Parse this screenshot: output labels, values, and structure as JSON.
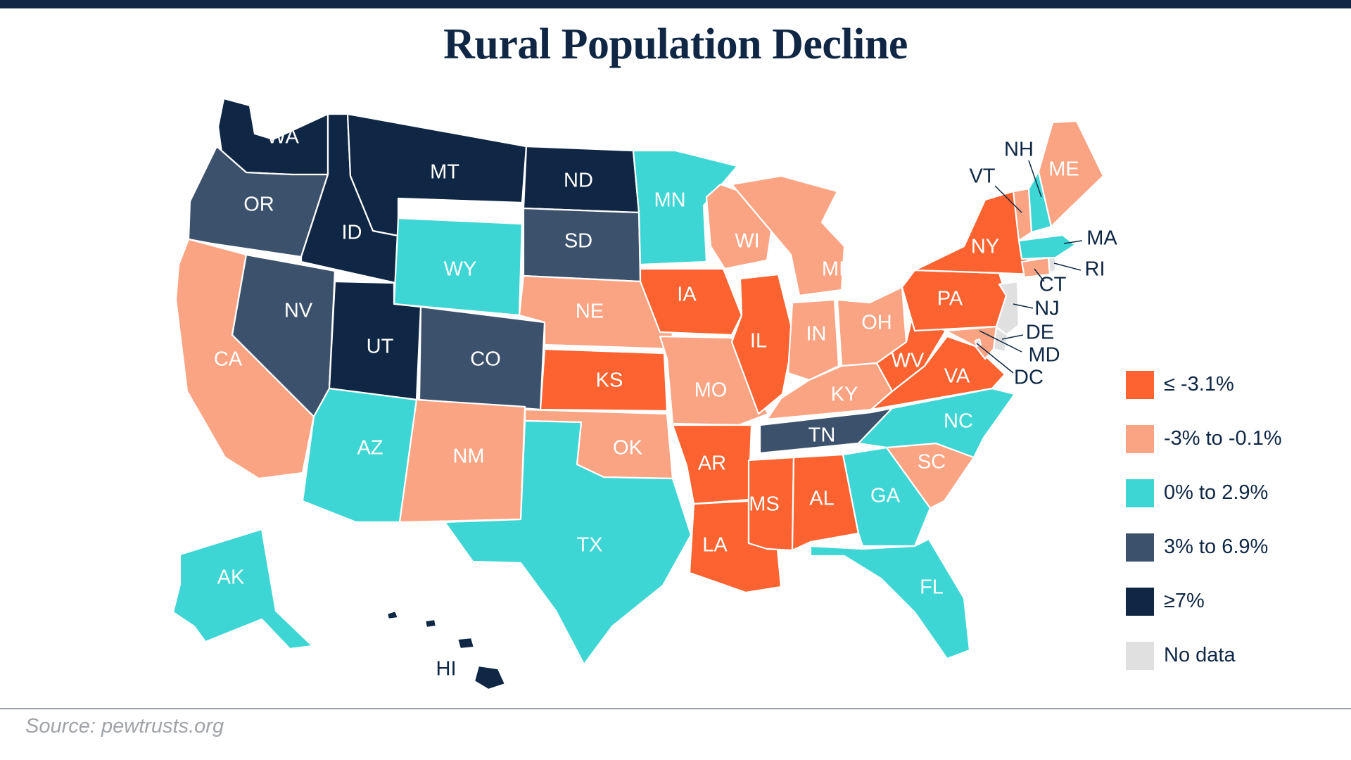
{
  "title": "Rural Population Decline",
  "source": "Source: pewtrusts.org",
  "colors": {
    "c1": "#fc6330",
    "c2": "#fba483",
    "c3": "#3ed6d4",
    "c4": "#3c526c",
    "c5": "#0f2744",
    "nodata": "#e0e0e0"
  },
  "legend": [
    {
      "key": "c1",
      "label": "≤ -3.1%"
    },
    {
      "key": "c2",
      "label": "-3% to -0.1%"
    },
    {
      "key": "c3",
      "label": "0% to 2.9%"
    },
    {
      "key": "c4",
      "label": "3% to 6.9%"
    },
    {
      "key": "c5",
      "label": "≥7%"
    },
    {
      "key": "nodata",
      "label": "No data"
    }
  ],
  "states": {
    "WA": "c5",
    "OR": "c4",
    "CA": "c2",
    "ID": "c5",
    "NV": "c4",
    "MT": "c5",
    "WY": "c3",
    "UT": "c5",
    "CO": "c4",
    "AZ": "c3",
    "NM": "c2",
    "ND": "c5",
    "SD": "c4",
    "NE": "c2",
    "KS": "c1",
    "OK": "c2",
    "TX": "c3",
    "MN": "c3",
    "IA": "c1",
    "MO": "c2",
    "AR": "c1",
    "LA": "c1",
    "WI": "c2",
    "IL": "c1",
    "MI": "c2",
    "IN": "c2",
    "OH": "c2",
    "KY": "c2",
    "TN": "c4",
    "MS": "c1",
    "AL": "c1",
    "GA": "c3",
    "FL": "c3",
    "SC": "c2",
    "NC": "c3",
    "VA": "c1",
    "WV": "c1",
    "PA": "c1",
    "NY": "c1",
    "VT": "c2",
    "NH": "c3",
    "ME": "c2",
    "MA": "c3",
    "RI": "nodata",
    "CT": "c2",
    "NJ": "nodata",
    "DE": "nodata",
    "MD": "c2",
    "DC": "nodata",
    "AK": "c3",
    "HI": "c5"
  }
}
